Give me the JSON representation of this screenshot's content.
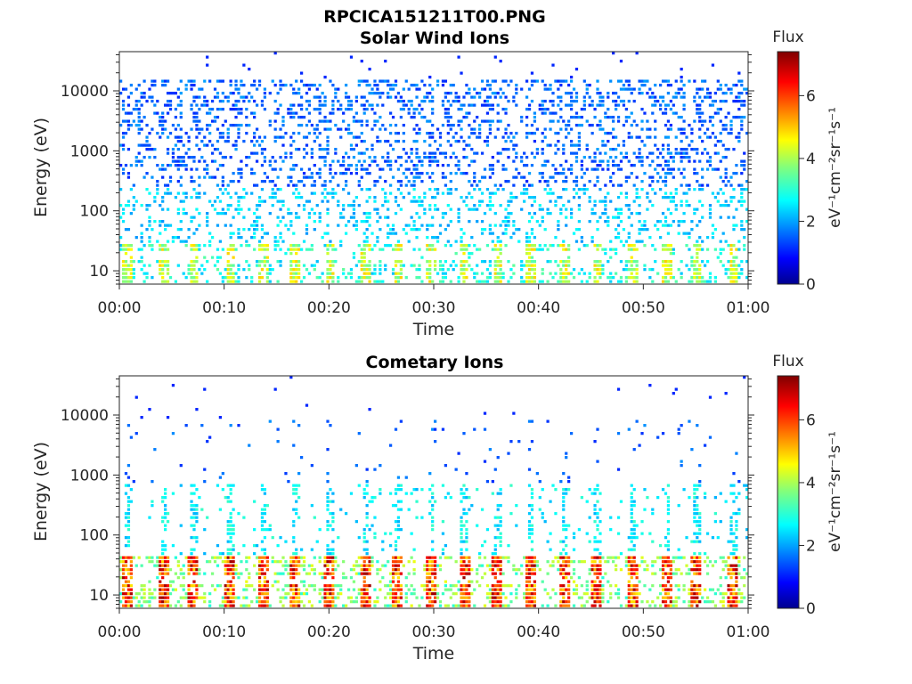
{
  "figure": {
    "filename": "RPCICA151211T00.PNG"
  },
  "colorbar": {
    "title": "Flux",
    "label": "eV⁻¹cm⁻²sr⁻¹s⁻¹",
    "range": [
      0,
      7.4
    ],
    "ticks": [
      0,
      2,
      4,
      6
    ],
    "colormap": "jet"
  },
  "chart_data": [
    {
      "type": "heatmap",
      "title": "Solar Wind Ions",
      "xlabel": "Time",
      "ylabel": "Energy (eV)",
      "x_range_minutes": [
        0,
        60
      ],
      "x_ticks": [
        "00:00",
        "00:10",
        "00:20",
        "00:30",
        "00:40",
        "00:50",
        "01:00"
      ],
      "y_scale": "log",
      "y_range": [
        6,
        45000
      ],
      "y_ticks": [
        "10",
        "100",
        "1000",
        "10000"
      ],
      "z_range": [
        0,
        7.4
      ],
      "bursts_minutes": [
        0.8,
        4.3,
        7.1,
        10.6,
        13.7,
        16.8,
        20.1,
        23.5,
        26.6,
        29.8,
        32.9,
        36.1,
        39.3,
        42.5,
        45.6,
        49.0,
        52.3,
        55.1,
        58.6
      ],
      "features": [
        {
          "energy_band_eV": [
            8,
            30
          ],
          "flux": 3.5,
          "description_visible": "banded low-energy population"
        },
        {
          "energy_band_eV": [
            30,
            20000
          ],
          "flux": 1.8,
          "description_visible": "sparse counts"
        }
      ]
    },
    {
      "type": "heatmap",
      "title": "Cometary Ions",
      "xlabel": "Time",
      "ylabel": "Energy (eV)",
      "x_range_minutes": [
        0,
        60
      ],
      "x_ticks": [
        "00:00",
        "00:10",
        "00:20",
        "00:30",
        "00:40",
        "00:50",
        "01:00"
      ],
      "y_scale": "log",
      "y_range": [
        6,
        45000
      ],
      "y_ticks": [
        "10",
        "100",
        "1000",
        "10000"
      ],
      "z_range": [
        0,
        7.4
      ],
      "bursts_minutes": [
        0.8,
        4.3,
        7.1,
        10.6,
        13.7,
        16.8,
        20.1,
        23.5,
        26.6,
        29.8,
        32.9,
        36.1,
        39.3,
        42.5,
        45.6,
        49.0,
        52.3,
        55.1,
        58.6
      ],
      "features": [
        {
          "energy_band_eV": [
            8,
            40
          ],
          "flux": 6.0,
          "description_visible": "intense low-energy bursts"
        },
        {
          "energy_band_eV": [
            40,
            700
          ],
          "flux": 2.8,
          "description_visible": "vertical streaks above bursts"
        },
        {
          "energy_band_eV": [
            700,
            30000
          ],
          "flux": 1.5,
          "description_visible": "sparse counts"
        }
      ]
    }
  ]
}
